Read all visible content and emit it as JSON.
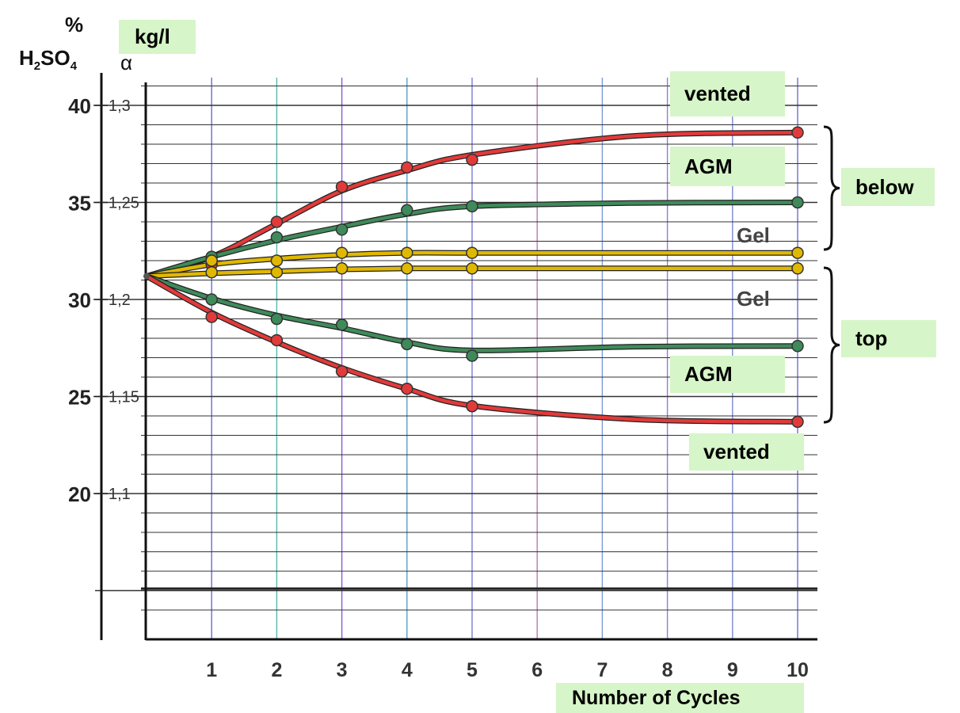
{
  "chart_data": {
    "type": "line",
    "xlabel": "Number of Cycles",
    "x": [
      1,
      2,
      3,
      4,
      5,
      10
    ],
    "x_ticks": [
      "1",
      "2",
      "3",
      "4",
      "5",
      "6",
      "7",
      "8",
      "9",
      "10"
    ],
    "xlim": [
      0,
      10
    ],
    "y_left": {
      "label_line1": "%",
      "label_line2": "H2SO4",
      "ticks": [
        "40",
        "35",
        "30",
        "25",
        "20"
      ],
      "tick_values": [
        40,
        35,
        30,
        25,
        20
      ]
    },
    "y_right": {
      "unit": "kg/l",
      "symbol": "α",
      "ticks": [
        "1,3",
        "1,25",
        "1,2",
        "1,15",
        "1,1"
      ],
      "tick_values": [
        40,
        35,
        30,
        25,
        20
      ]
    },
    "ylim": [
      13,
      42
    ],
    "grid": true,
    "start_point": [
      0,
      31.2
    ],
    "series": [
      {
        "name": "vented",
        "group": "below",
        "color": "#e23a3a",
        "values": [
          31.8,
          34.0,
          35.8,
          36.8,
          37.2,
          38.6
        ]
      },
      {
        "name": "AGM",
        "group": "below",
        "color": "#3f8a5a",
        "values": [
          32.2,
          33.2,
          33.6,
          34.6,
          34.8,
          35.0
        ]
      },
      {
        "name": "Gel",
        "group": "below",
        "color": "#e0b800",
        "values": [
          32.0,
          32.0,
          32.4,
          32.4,
          32.4,
          32.4
        ]
      },
      {
        "name": "Gel",
        "group": "top",
        "color": "#e0b800",
        "values": [
          31.4,
          31.4,
          31.6,
          31.6,
          31.6,
          31.6
        ]
      },
      {
        "name": "AGM",
        "group": "top",
        "color": "#3f8a5a",
        "values": [
          30.0,
          29.0,
          28.7,
          27.7,
          27.1,
          27.6
        ]
      },
      {
        "name": "vented",
        "group": "top",
        "color": "#e23a3a",
        "values": [
          29.1,
          27.9,
          26.3,
          25.4,
          24.5,
          23.7
        ]
      }
    ],
    "labels": {
      "vented_below": "vented",
      "agm_below": "AGM",
      "gel_below": "Gel",
      "gel_top": "Gel",
      "agm_top": "AGM",
      "vented_top": "vented",
      "group_below": "below",
      "group_top": "top"
    }
  }
}
